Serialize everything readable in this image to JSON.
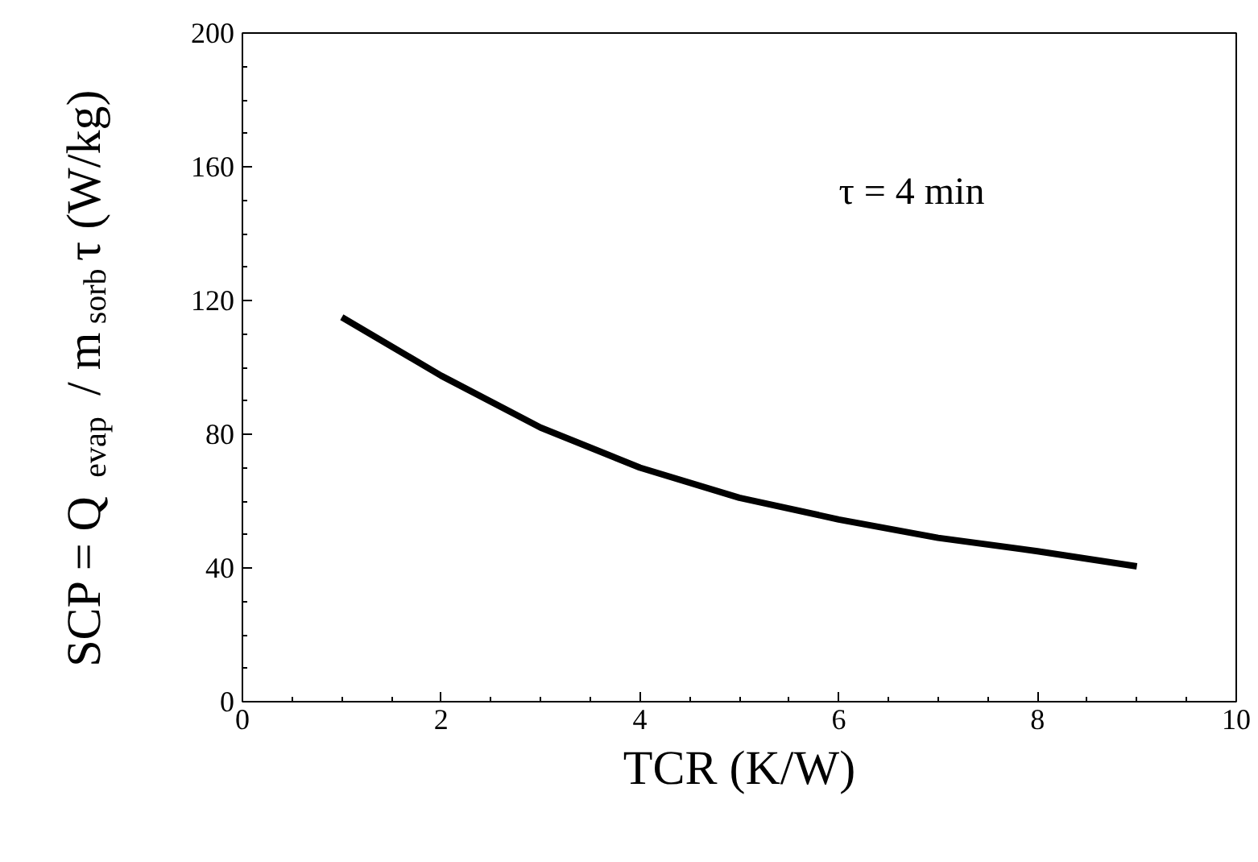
{
  "chart_data": {
    "type": "line",
    "xlabel": "TCR (K/W)",
    "ylabel": "SCP = Q$_{evap}$ / m$_{sorb}$τ (W/kg)",
    "annotations": [
      "τ = 4 min"
    ],
    "x": [
      1,
      2,
      3,
      4,
      5,
      6,
      7,
      8,
      9
    ],
    "series": [
      {
        "color": "#000000",
        "values": [
          115,
          97.5,
          82,
          70,
          61,
          54.5,
          49,
          45,
          40.5
        ]
      }
    ],
    "xlim": [
      0,
      10
    ],
    "ylim": [
      0,
      200
    ],
    "xticks": [
      0,
      2,
      4,
      6,
      8,
      10
    ],
    "yticks": [
      0,
      40,
      80,
      120,
      160,
      200
    ],
    "grid": false,
    "marker": "none",
    "line_style": "solid"
  }
}
